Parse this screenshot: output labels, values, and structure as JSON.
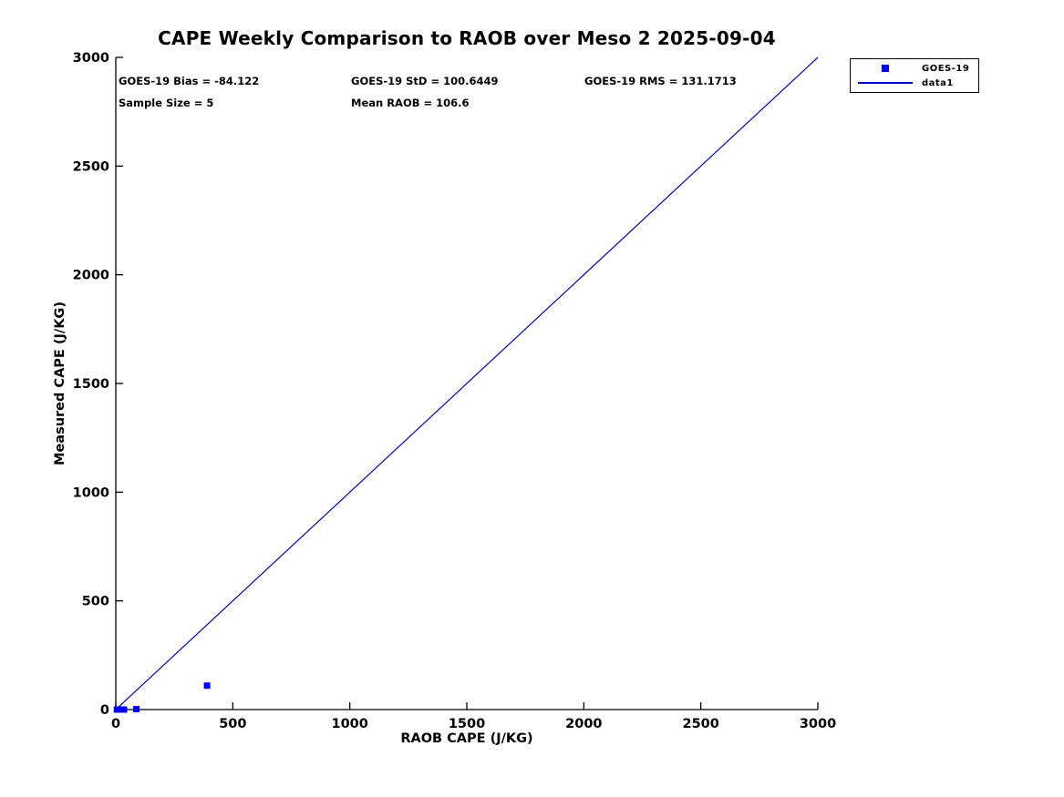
{
  "figure": {
    "background": "#ffffff",
    "text_color": "#000000",
    "axis_color": "#000000"
  },
  "chart_data": {
    "type": "scatter",
    "title": "CAPE Weekly Comparison to RAOB over Meso 2 2025-09-04",
    "xlabel": "RAOB CAPE (J/KG)",
    "ylabel": "Measured CAPE (J/KG)",
    "xlim": [
      0,
      3000
    ],
    "ylim": [
      0,
      3000
    ],
    "x_ticks": [
      0,
      500,
      1000,
      1500,
      2000,
      2500,
      3000
    ],
    "y_ticks": [
      0,
      500,
      1000,
      1500,
      2000,
      2500,
      3000
    ],
    "grid": false,
    "legend_position": "outside-top-right",
    "series": [
      {
        "name": "GOES-19",
        "type": "scatter",
        "marker": "square",
        "color": "#0000ff",
        "points": [
          [
            5,
            0
          ],
          [
            15,
            0
          ],
          [
            35,
            0
          ],
          [
            88,
            2
          ],
          [
            390,
            110
          ]
        ]
      },
      {
        "name": "data1",
        "type": "line",
        "color": "#0000cc",
        "points": [
          [
            0,
            0
          ],
          [
            3000,
            3000
          ]
        ]
      }
    ],
    "annotations": [
      "GOES-19 Bias = -84.122",
      "GOES-19 StD = 100.6449",
      "GOES-19 RMS = 131.1713",
      "Sample Size = 5",
      "Mean RAOB = 106.6"
    ]
  }
}
